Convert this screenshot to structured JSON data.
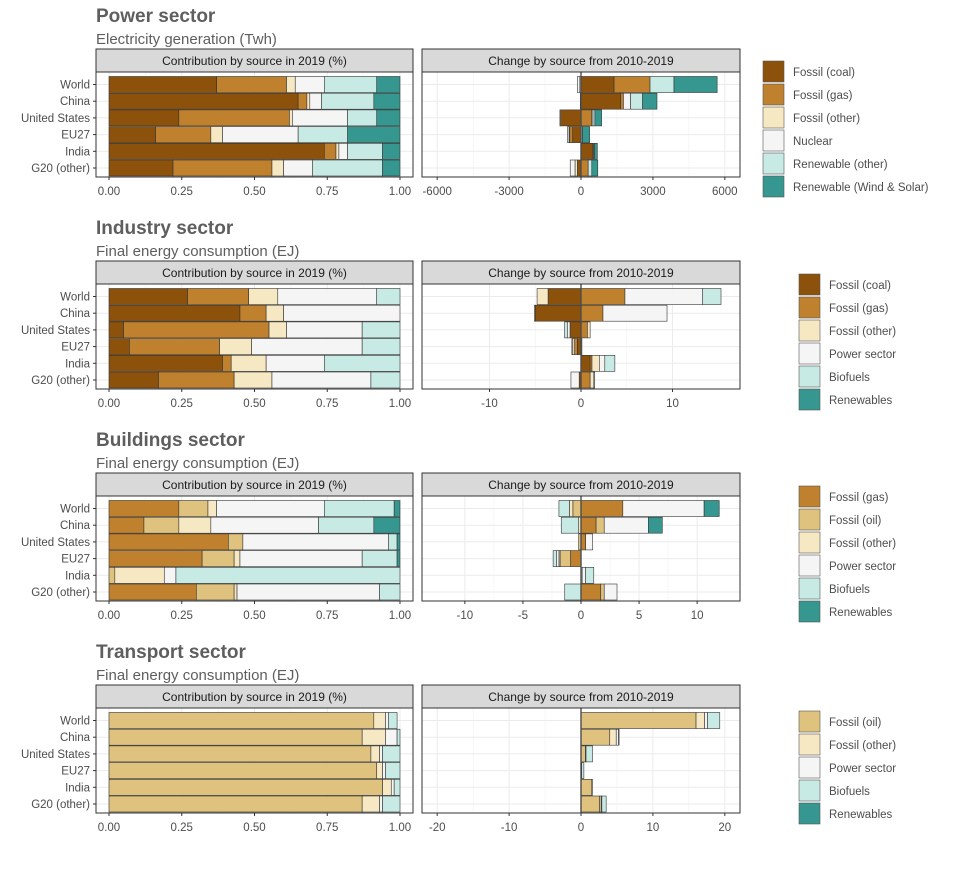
{
  "colors": {
    "Fossil (coal)": "#8C510A",
    "Fossil (gas)": "#BF812D",
    "Fossil (oil)": "#DFC27D",
    "Fossil (other)": "#F6E8C3",
    "Nuclear": "#F5F5F5",
    "Power sector": "#F5F5F5",
    "Renewable (other)": "#C7EAE5",
    "Biofuels": "#C7EAE5",
    "Renewable (Wind & Solar)": "#35978F",
    "Renewables": "#35978F"
  },
  "chart_data": [
    {
      "type": "bar",
      "title": "Power sector",
      "subtitle": "Electricity generation (Twh)",
      "panels": [
        "Contribution by source in 2019 (%)",
        "Change by source from 2010-2019"
      ],
      "categories": [
        "World",
        "China",
        "United States",
        "EU27",
        "India",
        "G20 (other)"
      ],
      "share_ticks": [
        "0.00",
        "0.25",
        "0.50",
        "0.75",
        "1.00"
      ],
      "change_ticks": [
        -6000,
        -3000,
        0,
        3000,
        6000
      ],
      "change_xlim": [
        -6300,
        6300
      ],
      "series": [
        {
          "name": "Fossil (coal)",
          "share": [
            0.37,
            0.65,
            0.24,
            0.16,
            0.74,
            0.22
          ],
          "change": [
            1380,
            1650,
            -850,
            -350,
            500,
            -150
          ]
        },
        {
          "name": "Fossil (gas)",
          "share": [
            0.24,
            0.03,
            0.38,
            0.19,
            0.04,
            0.34
          ],
          "change": [
            1500,
            120,
            450,
            -120,
            0,
            300
          ]
        },
        {
          "name": "Fossil (other)",
          "share": [
            0.03,
            0.01,
            0.01,
            0.04,
            0.01,
            0.04
          ],
          "change": [
            -50,
            -30,
            -30,
            -30,
            -10,
            -100
          ]
        },
        {
          "name": "Nuclear",
          "share": [
            0.1,
            0.04,
            0.19,
            0.26,
            0.03,
            0.1
          ],
          "change": [
            -100,
            300,
            50,
            -60,
            30,
            -200
          ]
        },
        {
          "name": "Renewable (other)",
          "share": [
            0.18,
            0.18,
            0.1,
            0.17,
            0.12,
            0.24
          ],
          "change": [
            1000,
            500,
            80,
            60,
            30,
            150
          ]
        },
        {
          "name": "Renewable (Wind & Solar)",
          "share": [
            0.08,
            0.09,
            0.08,
            0.18,
            0.06,
            0.06
          ],
          "change": [
            1800,
            600,
            280,
            300,
            120,
            250
          ]
        }
      ]
    },
    {
      "type": "bar",
      "title": "Industry sector",
      "subtitle": "Final energy consumption (EJ)",
      "panels": [
        "Contribution by source in 2019 (%)",
        "Change by source from 2010-2019"
      ],
      "categories": [
        "World",
        "China",
        "United States",
        "EU27",
        "India",
        "G20 (other)"
      ],
      "share_ticks": [
        "0.00",
        "0.25",
        "0.50",
        "0.75",
        "1.00"
      ],
      "change_ticks": [
        -10,
        0,
        10
      ],
      "change_xlim": [
        -16.5,
        16.5
      ],
      "series": [
        {
          "name": "Fossil (coal)",
          "share": [
            0.27,
            0.45,
            0.05,
            0.07,
            0.39,
            0.17
          ],
          "change": [
            -3.6,
            -5.0,
            -1.2,
            -0.4,
            1.0,
            -0.2
          ]
        },
        {
          "name": "Fossil (gas)",
          "share": [
            0.21,
            0.09,
            0.5,
            0.31,
            0.03,
            0.26
          ],
          "change": [
            4.8,
            2.4,
            0.7,
            -0.3,
            0.2,
            1.0
          ]
        },
        {
          "name": "Fossil (other)",
          "share": [
            0.1,
            0.06,
            0.06,
            0.11,
            0.12,
            0.13
          ],
          "change": [
            -1.2,
            -0.1,
            0.3,
            -0.2,
            0.8,
            0.4
          ]
        },
        {
          "name": "Power sector",
          "share": [
            0.34,
            0.4,
            0.26,
            0.38,
            0.2,
            0.34
          ],
          "change": [
            8.5,
            7.0,
            -0.3,
            -0.1,
            0.6,
            -0.9
          ]
        },
        {
          "name": "Biofuels",
          "share": [
            0.08,
            0.0,
            0.13,
            0.13,
            0.26,
            0.1
          ],
          "change": [
            2.0,
            0.0,
            -0.3,
            0.1,
            1.1,
            0.1
          ]
        },
        {
          "name": "Renewables",
          "share": [
            0.0,
            0.0,
            0.0,
            0.0,
            0.0,
            0.0
          ],
          "change": [
            0,
            0,
            0,
            0,
            0,
            0
          ]
        }
      ]
    },
    {
      "type": "bar",
      "title": "Buildings sector",
      "subtitle": "Final energy consumption (EJ)",
      "panels": [
        "Contribution by source in 2019 (%)",
        "Change by source from 2010-2019"
      ],
      "categories": [
        "World",
        "China",
        "United States",
        "EU27",
        "India",
        "G20 (other)"
      ],
      "share_ticks": [
        "0.00",
        "0.25",
        "0.50",
        "0.75",
        "1.00"
      ],
      "change_ticks": [
        -10,
        -5,
        0,
        5,
        10
      ],
      "change_xlim": [
        -13,
        13
      ],
      "series": [
        {
          "name": "Fossil (gas)",
          "share": [
            0.24,
            0.12,
            0.41,
            0.32,
            0.0,
            0.3
          ],
          "change": [
            3.6,
            1.3,
            0.4,
            -0.9,
            0.0,
            1.7
          ]
        },
        {
          "name": "Fossil (oil)",
          "share": [
            0.1,
            0.12,
            0.05,
            0.11,
            0.02,
            0.13
          ],
          "change": [
            -0.7,
            0.7,
            -0.2,
            -0.9,
            0.0,
            0.3
          ]
        },
        {
          "name": "Fossil (other)",
          "share": [
            0.03,
            0.11,
            0.0,
            0.02,
            0.17,
            0.01
          ],
          "change": [
            -0.3,
            -0.2,
            0.0,
            -0.1,
            0.1,
            0.0
          ]
        },
        {
          "name": "Power sector",
          "share": [
            0.37,
            0.37,
            0.5,
            0.42,
            0.04,
            0.49
          ],
          "change": [
            7.0,
            3.8,
            0.6,
            -0.2,
            0.3,
            1.1
          ]
        },
        {
          "name": "Biofuels",
          "share": [
            0.24,
            0.19,
            0.03,
            0.12,
            0.77,
            0.07
          ],
          "change": [
            -0.9,
            -1.5,
            0.0,
            -0.3,
            0.7,
            -1.4
          ]
        },
        {
          "name": "Renewables",
          "share": [
            0.02,
            0.09,
            0.01,
            0.01,
            0.0,
            0.0
          ],
          "change": [
            1.3,
            1.2,
            0.0,
            0.0,
            0.0,
            0.0
          ]
        }
      ]
    },
    {
      "type": "bar",
      "title": "Transport sector",
      "subtitle": "Final energy consumption (EJ)",
      "panels": [
        "Contribution by source in 2019 (%)",
        "Change by source from 2010-2019"
      ],
      "categories": [
        "World",
        "China",
        "United States",
        "EU27",
        "India",
        "G20 (other)"
      ],
      "share_ticks": [
        "0.00",
        "0.25",
        "0.50",
        "0.75",
        "1.00"
      ],
      "change_ticks": [
        -20,
        -10,
        0,
        10,
        20
      ],
      "change_xlim": [
        -21,
        21
      ],
      "series": [
        {
          "name": "Fossil (oil)",
          "share": [
            0.91,
            0.87,
            0.9,
            0.92,
            0.94,
            0.87
          ],
          "change": [
            16.0,
            4.0,
            0.6,
            0.1,
            1.5,
            2.6
          ]
        },
        {
          "name": "Fossil (other)",
          "share": [
            0.04,
            0.08,
            0.03,
            0.02,
            0.03,
            0.06
          ],
          "change": [
            1.2,
            0.9,
            0.0,
            0.0,
            0.1,
            0.2
          ]
        },
        {
          "name": "Power sector",
          "share": [
            0.01,
            0.04,
            0.01,
            0.01,
            0.01,
            0.01
          ],
          "change": [
            0.4,
            0.3,
            0.1,
            0.0,
            0.0,
            0.1
          ]
        },
        {
          "name": "Biofuels",
          "share": [
            0.03,
            0.01,
            0.06,
            0.05,
            0.02,
            0.06
          ],
          "change": [
            1.7,
            0.1,
            0.9,
            0.3,
            0.0,
            0.6
          ]
        },
        {
          "name": "Renewables",
          "share": [
            0.0,
            0.0,
            0.0,
            0.0,
            0.0,
            0.0
          ],
          "change": [
            0,
            0,
            0,
            0,
            0,
            0
          ]
        }
      ]
    }
  ]
}
